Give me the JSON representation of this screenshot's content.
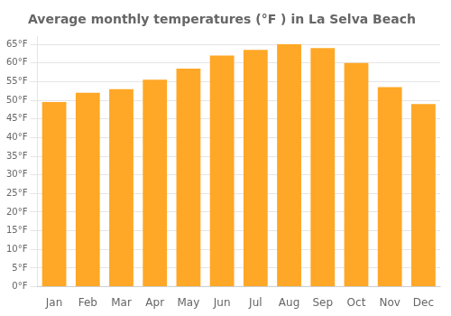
{
  "chart_data": {
    "type": "bar",
    "title": "Average monthly temperatures (°F ) in La Selva Beach",
    "categories": [
      "Jan",
      "Feb",
      "Mar",
      "Apr",
      "May",
      "Jun",
      "Jul",
      "Aug",
      "Sep",
      "Oct",
      "Nov",
      "Dec"
    ],
    "values": [
      49.5,
      52.0,
      53.0,
      55.5,
      58.5,
      62.0,
      63.5,
      65.0,
      64.0,
      60.0,
      53.5,
      49.0
    ],
    "color": "#FFA726",
    "ylim": [
      0,
      67
    ],
    "yticks": [
      {
        "value": 0,
        "label": "0°F"
      },
      {
        "value": 5,
        "label": "5°F"
      },
      {
        "value": 10,
        "label": "10°F"
      },
      {
        "value": 15,
        "label": "15°F"
      },
      {
        "value": 20,
        "label": "20°F"
      },
      {
        "value": 25,
        "label": "25°F"
      },
      {
        "value": 30,
        "label": "30°F"
      },
      {
        "value": 35,
        "label": "35°F"
      },
      {
        "value": 40,
        "label": "40°F"
      },
      {
        "value": 45,
        "label": "45°F"
      },
      {
        "value": 50,
        "label": "50°F"
      },
      {
        "value": 55,
        "label": "55°F"
      },
      {
        "value": 60,
        "label": "60°F"
      },
      {
        "value": 65,
        "label": "65°F"
      }
    ],
    "grid": true
  }
}
